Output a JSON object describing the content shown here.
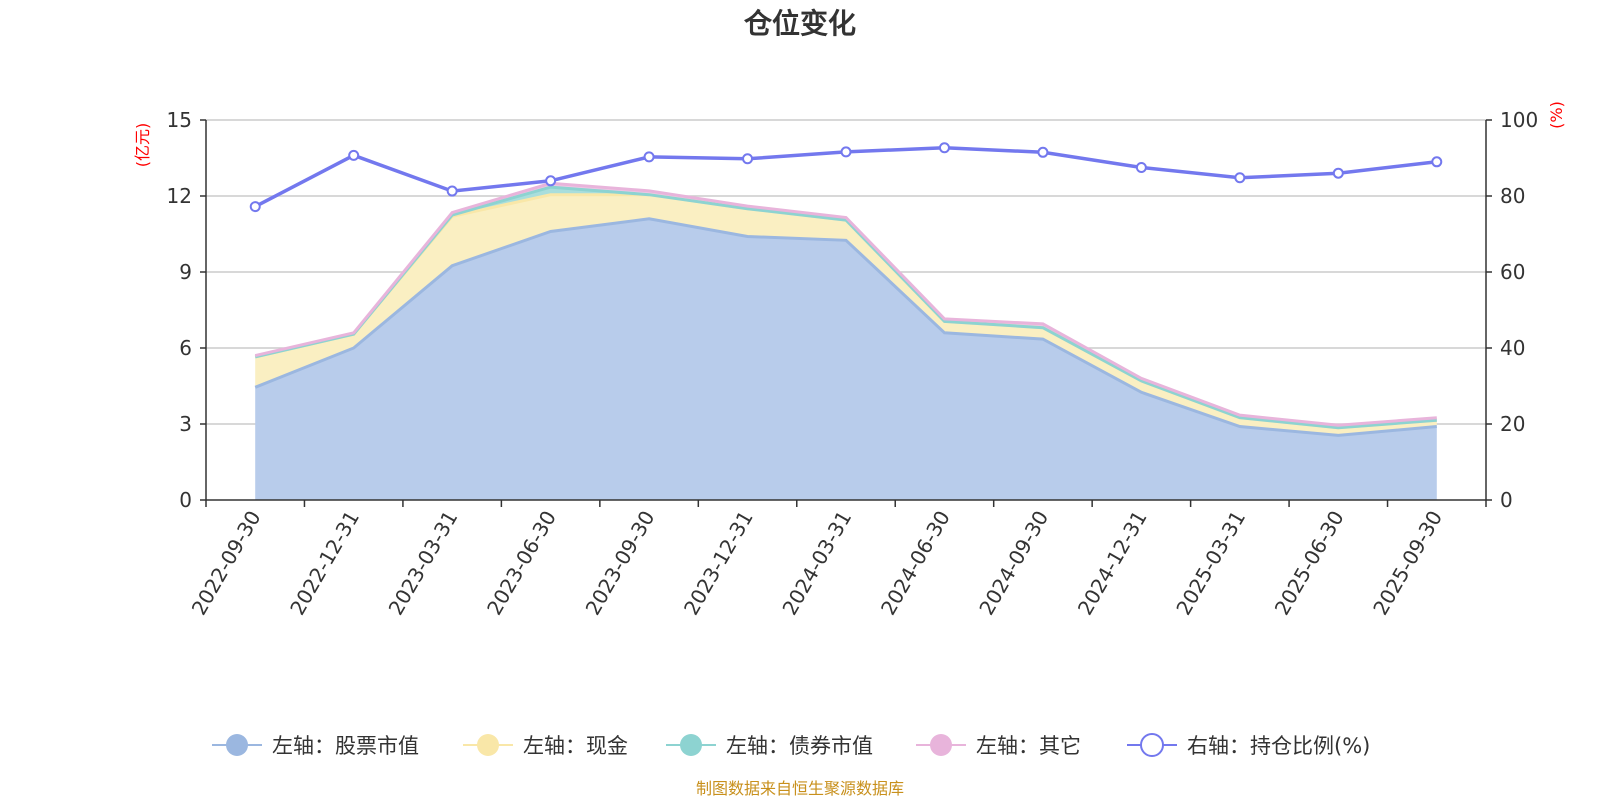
{
  "chart_data": {
    "type": "area",
    "title": "仓位变化",
    "categories": [
      "2022-09-30",
      "2022-12-31",
      "2023-03-31",
      "2023-06-30",
      "2023-09-30",
      "2023-12-31",
      "2024-03-31",
      "2024-06-30",
      "2024-09-30",
      "2024-12-31",
      "2025-03-31",
      "2025-06-30",
      "2025-09-30"
    ],
    "left_axis": {
      "unit": "(亿元)",
      "ylim": [
        0,
        15
      ],
      "ticks": [
        0,
        3,
        6,
        9,
        12,
        15
      ],
      "tick_labels": [
        "0",
        "3",
        "6",
        "9",
        "12",
        "15"
      ]
    },
    "right_axis": {
      "unit": "(%)",
      "ylim": [
        0,
        100
      ],
      "ticks": [
        0,
        20,
        40,
        60,
        80,
        100
      ],
      "tick_labels": [
        "0",
        "20",
        "40",
        "60",
        "80",
        "100"
      ]
    },
    "stacked_series": [
      {
        "name": "左轴：股票市值",
        "color": "#9bb7e0",
        "fill": "#b8cceb",
        "values": [
          4.45,
          6.0,
          9.25,
          10.6,
          11.1,
          10.4,
          10.25,
          6.6,
          6.35,
          4.25,
          2.9,
          2.55,
          2.9
        ]
      },
      {
        "name": "左轴：现金",
        "color": "#f9e7a8",
        "fill": "#faefc2",
        "values": [
          1.2,
          0.55,
          1.95,
          1.45,
          0.95,
          1.1,
          0.8,
          0.45,
          0.45,
          0.45,
          0.35,
          0.3,
          0.25
        ]
      },
      {
        "name": "左轴：债券市值",
        "color": "#8dd3d1",
        "fill": "#a9dedc",
        "values": [
          0,
          0,
          0.05,
          0.3,
          0,
          0,
          0,
          0,
          0,
          0,
          0,
          0,
          0
        ]
      },
      {
        "name": "左轴：其它",
        "color": "#e8b4db",
        "fill": "#f0c8e6",
        "values": [
          0.05,
          0.05,
          0.1,
          0.15,
          0.15,
          0.1,
          0.1,
          0.1,
          0.15,
          0.1,
          0.1,
          0.1,
          0.1
        ]
      }
    ],
    "line_series": {
      "name": "右轴：持仓比例(%)",
      "color": "#7378ee",
      "values": [
        77.2,
        90.7,
        81.3,
        84.0,
        90.3,
        89.8,
        91.6,
        92.7,
        91.5,
        87.5,
        84.8,
        86.0,
        89.0
      ]
    },
    "legend_position": "bottom",
    "grid": true,
    "source": "制图数据来自恒生聚源数据库"
  }
}
